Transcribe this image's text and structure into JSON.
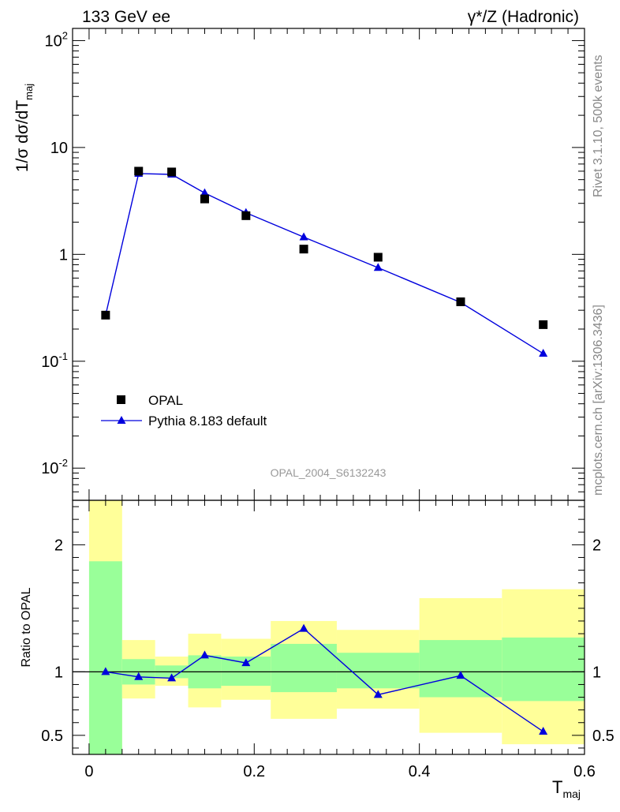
{
  "header": {
    "left": "133 GeV ee",
    "right": "γ*/Z (Hadronic)"
  },
  "side_labels": {
    "rivet": "Rivet 3.1.10,  500k events",
    "mcplots": "mcplots.cern.ch [arXiv:1306.3436]"
  },
  "colors": {
    "data": "#000000",
    "mc": "#0000dd",
    "band_inner": "#99ff99",
    "band_outer": "#ffff99"
  },
  "chart_data": [
    {
      "type": "scatter",
      "panel": "main",
      "ylabel": "1/σ dσ/dT",
      "ylabel_sub": "maj",
      "yscale": "log",
      "ylim": [
        0.005,
        130
      ],
      "xlim": [
        -0.02,
        0.6
      ],
      "y_ticks": [
        "10^-2",
        "10^-1",
        "1",
        "10",
        "10^2"
      ],
      "watermark": "OPAL_2004_S6132243",
      "legend_position": "lower-left",
      "x": [
        0.02,
        0.06,
        0.1,
        0.14,
        0.19,
        0.26,
        0.35,
        0.45,
        0.55
      ],
      "series": [
        {
          "name": "OPAL",
          "marker": "square",
          "values": [
            0.27,
            6.0,
            5.9,
            3.3,
            2.3,
            1.12,
            0.94,
            0.36,
            0.22
          ]
        },
        {
          "name": "Pythia 8.183 default",
          "marker": "triangle",
          "line": true,
          "values": [
            0.27,
            5.7,
            5.6,
            3.75,
            2.45,
            1.45,
            0.75,
            0.355,
            0.118
          ]
        }
      ]
    },
    {
      "type": "line",
      "panel": "ratio",
      "ylabel": "Ratio to OPAL",
      "xlabel": "T",
      "xlabel_sub": "maj",
      "ylim": [
        0.35,
        2.35
      ],
      "xlim": [
        -0.02,
        0.6
      ],
      "x_ticks": [
        "0",
        "0.2",
        "0.4",
        "0.6"
      ],
      "y_ticks": [
        "0.5",
        "1",
        "2"
      ],
      "reference_line": 1,
      "bands": [
        {
          "x0": 0.0,
          "x1": 0.04,
          "inner": [
            0.35,
            1.87
          ],
          "outer": [
            0.35,
            2.35
          ]
        },
        {
          "x0": 0.04,
          "x1": 0.08,
          "inner": [
            0.9,
            1.1
          ],
          "outer": [
            0.79,
            1.25
          ]
        },
        {
          "x0": 0.08,
          "x1": 0.12,
          "inner": [
            0.95,
            1.05
          ],
          "outer": [
            0.89,
            1.12
          ]
        },
        {
          "x0": 0.12,
          "x1": 0.16,
          "inner": [
            0.87,
            1.13
          ],
          "outer": [
            0.72,
            1.3
          ]
        },
        {
          "x0": 0.16,
          "x1": 0.22,
          "inner": [
            0.89,
            1.12
          ],
          "outer": [
            0.78,
            1.26
          ]
        },
        {
          "x0": 0.22,
          "x1": 0.3,
          "inner": [
            0.84,
            1.22
          ],
          "outer": [
            0.63,
            1.4
          ]
        },
        {
          "x0": 0.3,
          "x1": 0.4,
          "inner": [
            0.87,
            1.15
          ],
          "outer": [
            0.71,
            1.33
          ]
        },
        {
          "x0": 0.4,
          "x1": 0.5,
          "inner": [
            0.8,
            1.25
          ],
          "outer": [
            0.52,
            1.58
          ]
        },
        {
          "x0": 0.5,
          "x1": 0.6,
          "inner": [
            0.77,
            1.27
          ],
          "outer": [
            0.43,
            1.65
          ]
        }
      ],
      "x": [
        0.02,
        0.06,
        0.1,
        0.14,
        0.19,
        0.26,
        0.35,
        0.45,
        0.55
      ],
      "series": [
        {
          "name": "Pythia 8.183 default",
          "values": [
            1.0,
            0.96,
            0.95,
            1.13,
            1.07,
            1.34,
            0.82,
            0.97,
            0.53
          ]
        }
      ]
    }
  ]
}
